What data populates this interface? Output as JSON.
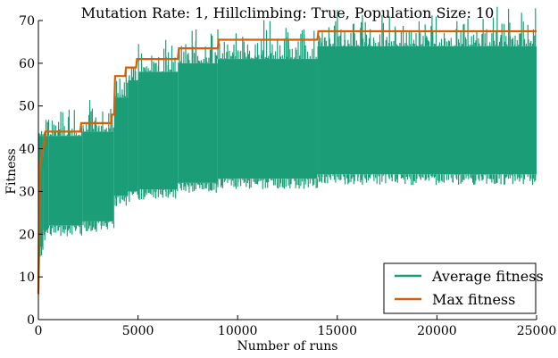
{
  "chart_data": {
    "type": "line",
    "title": "Mutation Rate: 1, Hillclimbing: True, Population Size: 10",
    "xlabel": "Number of runs",
    "ylabel": "Fitness",
    "xlim": [
      0,
      25000
    ],
    "ylim": [
      0,
      70
    ],
    "xticks": [
      0,
      5000,
      10000,
      15000,
      20000,
      25000
    ],
    "yticks": [
      0,
      10,
      20,
      30,
      40,
      50,
      60,
      70
    ],
    "grid": false,
    "legend_position": "bottom-right",
    "series": [
      {
        "name": "Average fitness",
        "color": "#1b9e77",
        "band": [
          {
            "x0": 0,
            "x1": 250,
            "low": 17,
            "high": 43
          },
          {
            "x0": 250,
            "x1": 500,
            "low": 21,
            "high": 43
          },
          {
            "x0": 500,
            "x1": 2200,
            "low": 22,
            "high": 43
          },
          {
            "x0": 2200,
            "x1": 3800,
            "low": 23,
            "high": 44
          },
          {
            "x0": 3800,
            "x1": 4500,
            "low": 29,
            "high": 52
          },
          {
            "x0": 4500,
            "x1": 5000,
            "low": 30,
            "high": 56
          },
          {
            "x0": 5000,
            "x1": 7000,
            "low": 30.5,
            "high": 58
          },
          {
            "x0": 7000,
            "x1": 9000,
            "low": 32,
            "high": 60
          },
          {
            "x0": 9000,
            "x1": 14000,
            "low": 33,
            "high": 61
          },
          {
            "x0": 14000,
            "x1": 25000,
            "low": 34,
            "high": 64
          }
        ],
        "peaks": [
          {
            "x": 3700,
            "y": 47
          },
          {
            "x": 5200,
            "y": 58
          },
          {
            "x": 7200,
            "y": 59.5
          },
          {
            "x": 8300,
            "y": 61
          },
          {
            "x": 9800,
            "y": 62
          },
          {
            "x": 11200,
            "y": 62
          },
          {
            "x": 12500,
            "y": 61.5
          },
          {
            "x": 14600,
            "y": 66
          },
          {
            "x": 16200,
            "y": 65
          },
          {
            "x": 19500,
            "y": 66
          },
          {
            "x": 21300,
            "y": 64.5
          },
          {
            "x": 23200,
            "y": 66
          },
          {
            "x": 24200,
            "y": 67
          },
          {
            "x": 24900,
            "y": 63
          }
        ]
      },
      {
        "name": "Max fitness",
        "color": "#d95f02",
        "x": [
          0,
          50,
          150,
          250,
          300,
          350,
          2100,
          2150,
          3650,
          3700,
          3800,
          3850,
          4350,
          4400,
          4900,
          4950,
          7000,
          7050,
          9000,
          9050,
          14000,
          14050,
          25000
        ],
        "y": [
          6,
          35,
          38,
          41,
          41,
          44,
          44,
          46,
          46,
          48,
          48,
          57,
          57,
          59,
          59,
          61,
          61,
          63.5,
          63.5,
          65.5,
          65.5,
          67.5,
          67.5
        ]
      }
    ]
  }
}
